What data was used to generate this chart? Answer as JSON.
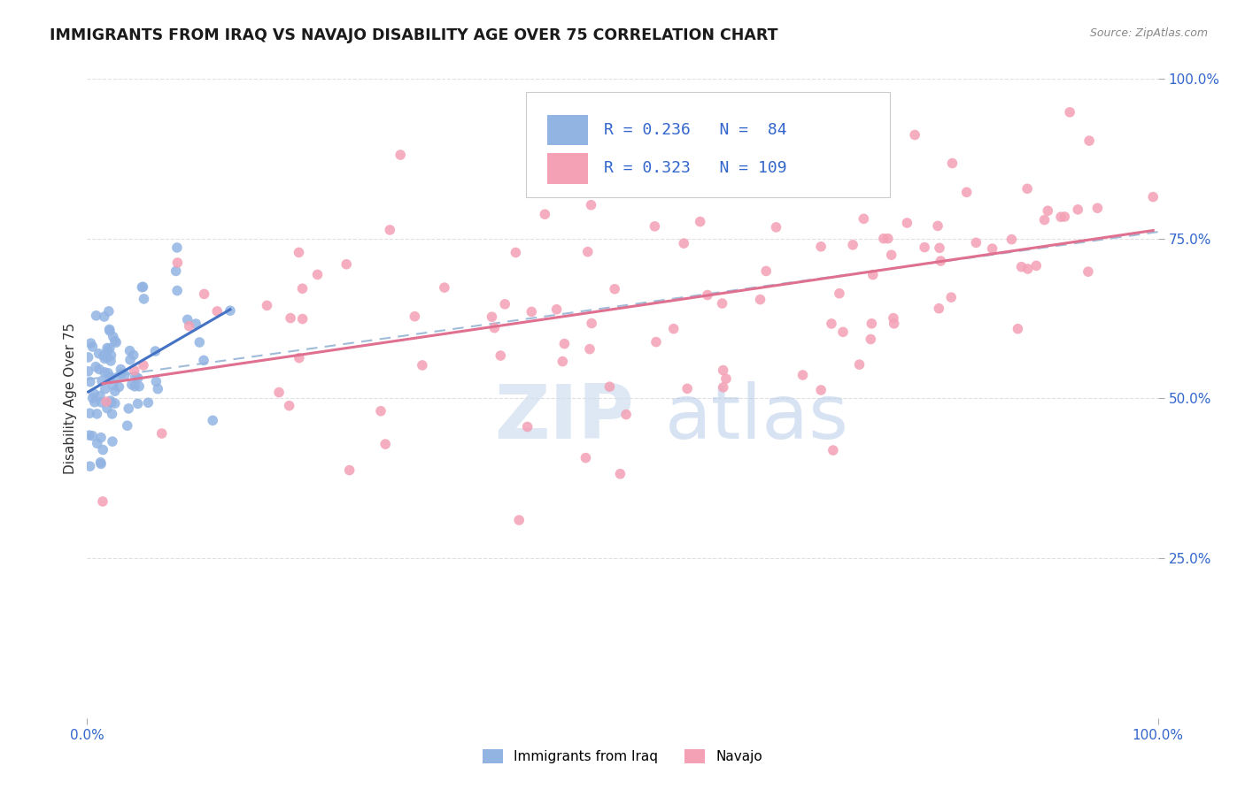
{
  "title": "IMMIGRANTS FROM IRAQ VS NAVAJO DISABILITY AGE OVER 75 CORRELATION CHART",
  "source": "Source: ZipAtlas.com",
  "ylabel": "Disability Age Over 75",
  "legend_label1": "Immigrants from Iraq",
  "legend_label2": "Navajo",
  "R1": 0.236,
  "N1": 84,
  "R2": 0.323,
  "N2": 109,
  "color1": "#92b4e3",
  "color2": "#f4a0b5",
  "line1_color": "#4472c4",
  "line2_color": "#e07090",
  "dash_line_color": "#a0bcd8",
  "background_color": "#ffffff",
  "watermark_zip": "ZIP",
  "watermark_atlas": "atlas",
  "grid_color": "#e0e0e0",
  "title_color": "#1a1a1a",
  "source_color": "#888888",
  "tick_color": "#3366cc",
  "ylabel_color": "#333333"
}
